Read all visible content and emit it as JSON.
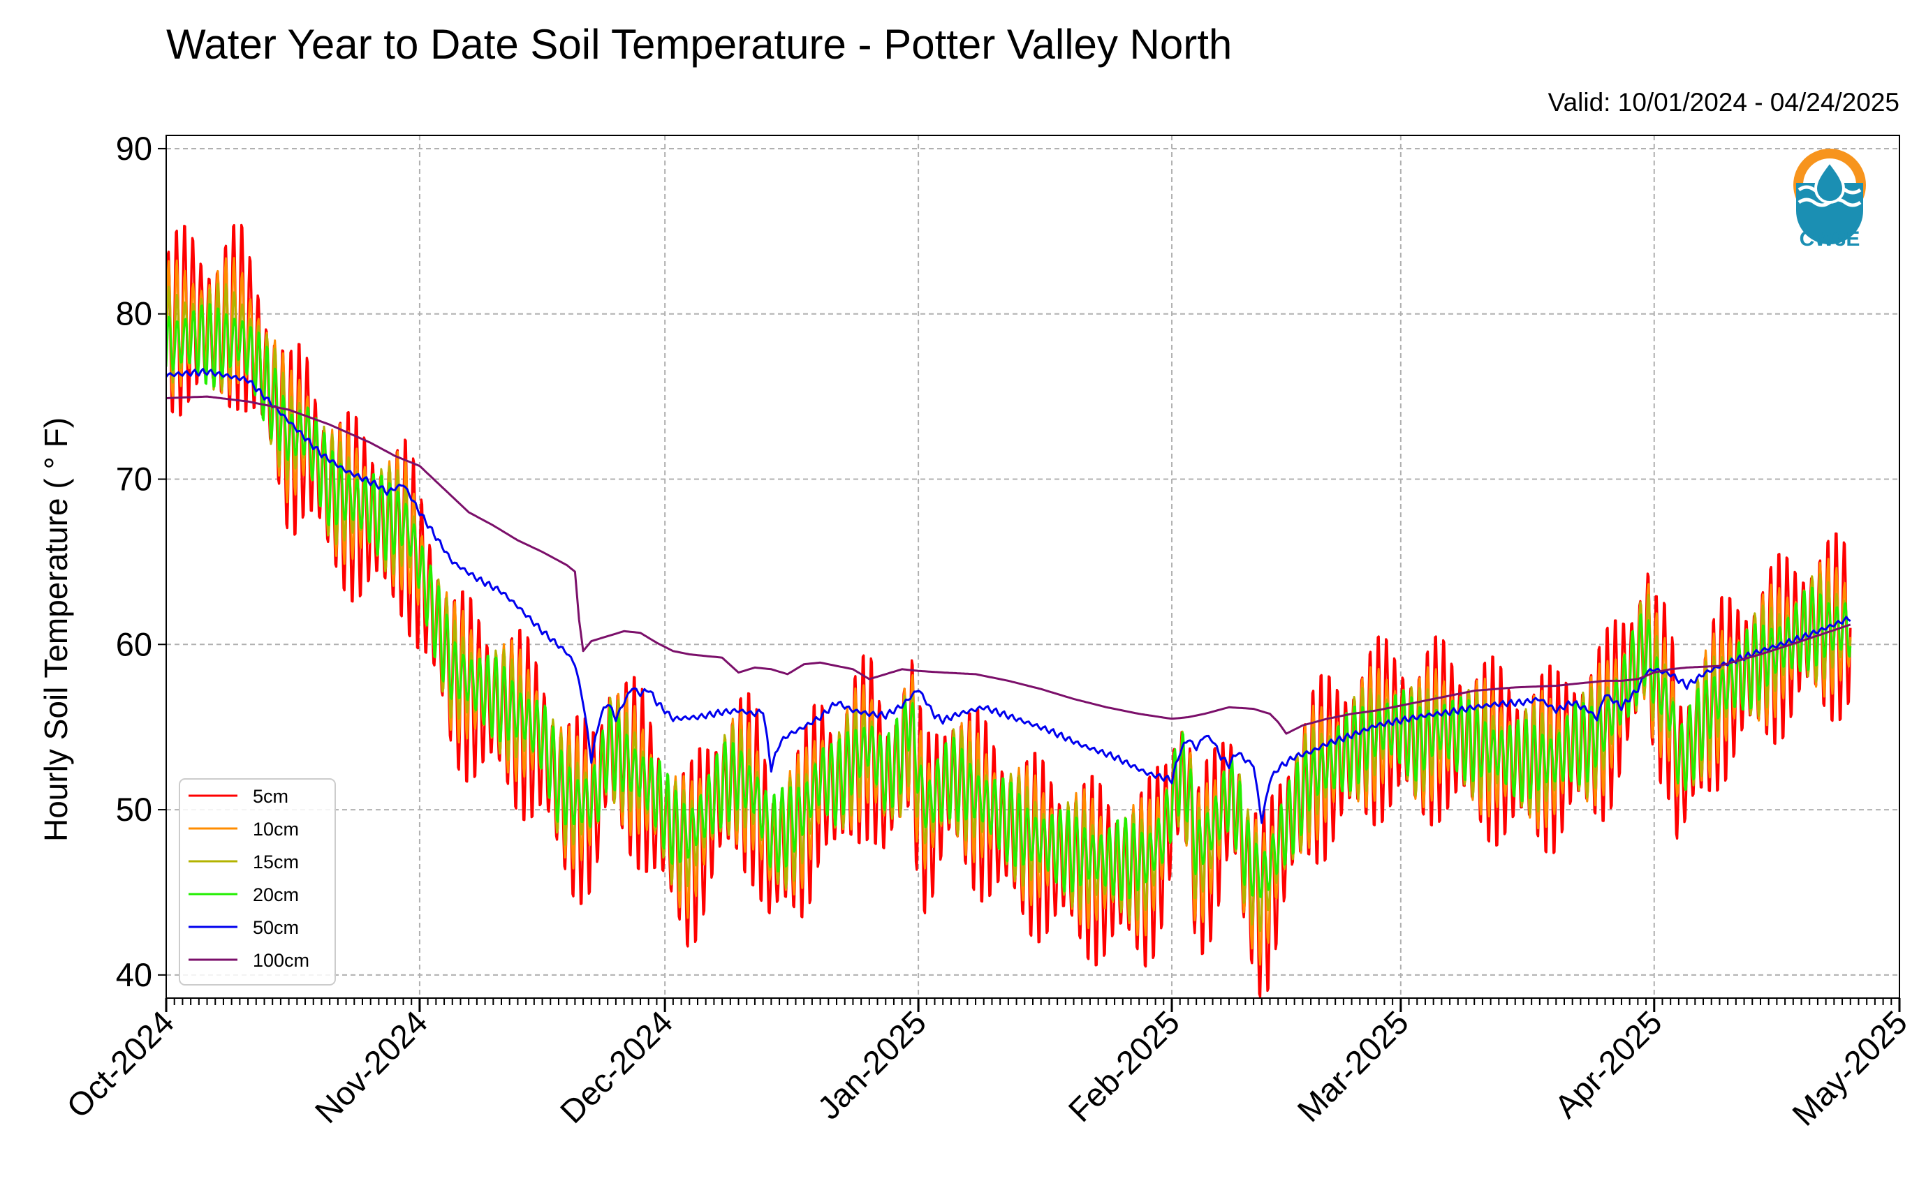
{
  "chart_data": {
    "type": "line",
    "title": "Water Year to Date Soil Temperature - Potter Valley North",
    "subtitle": "Valid: 10/01/2024 - 04/24/2025",
    "ylabel": "Hourly Soil Temperature ( ° F)",
    "xlabel": "",
    "ylim": [
      38.6,
      90.8
    ],
    "yticks": [
      40,
      50,
      60,
      70,
      80,
      90
    ],
    "xlim": [
      0,
      212
    ],
    "x_unit": "days since 2024-10-01",
    "xtick_labels": [
      "Oct-2024",
      "Nov-2024",
      "Dec-2024",
      "Jan-2025",
      "Feb-2025",
      "Mar-2025",
      "Apr-2025",
      "May-2025"
    ],
    "xtick_days": [
      0,
      31,
      61,
      92,
      123,
      151,
      182,
      212
    ],
    "grid": true,
    "legend_position": "lower-left",
    "logo_text": "CW3E",
    "series": [
      {
        "name": "5cm",
        "color": "#ff0000",
        "diurnal_amplitude": 6.0,
        "x": [
          0,
          3,
          6,
          9,
          11,
          15,
          17,
          20,
          24,
          27,
          29,
          30,
          32,
          35,
          38,
          41,
          44,
          46,
          48,
          50,
          52,
          53,
          54,
          56,
          58,
          60,
          62,
          64,
          66,
          68,
          70,
          72,
          74,
          76,
          78,
          80,
          82,
          84,
          86,
          88,
          90,
          91,
          92,
          93,
          94,
          96,
          100,
          105,
          110,
          115,
          120,
          122,
          123,
          124,
          125,
          126,
          128,
          130,
          131,
          132,
          133,
          134,
          135,
          136,
          138,
          140,
          143,
          146,
          149,
          151,
          153,
          156,
          160,
          165,
          170,
          172,
          174,
          176,
          178,
          180,
          181,
          182,
          184,
          185,
          186,
          188,
          190,
          192,
          195,
          198,
          201,
          204,
          206
        ],
        "y": [
          79,
          80,
          79,
          80,
          78,
          72,
          73,
          69,
          68,
          67,
          67,
          66,
          63,
          58,
          57,
          56,
          55,
          54,
          51,
          50,
          50,
          51,
          54,
          53,
          52,
          50,
          48,
          47,
          49,
          51,
          52,
          51,
          47,
          48,
          49,
          52,
          51,
          53,
          54,
          51,
          53,
          55,
          51,
          49,
          50,
          52,
          50,
          48,
          47,
          46,
          46,
          48,
          50,
          52,
          51,
          46,
          48,
          51,
          50,
          46,
          45,
          44,
          45,
          47,
          50,
          52,
          53,
          54,
          55,
          55,
          54,
          55,
          54,
          53,
          53,
          54,
          54,
          55,
          57,
          59,
          61,
          58,
          56,
          52,
          53,
          55,
          57,
          58,
          59,
          60,
          61,
          61,
          61
        ]
      },
      {
        "name": "10cm",
        "color": "#ff8c00",
        "diurnal_amplitude": 4.2,
        "x": [
          0,
          3,
          6,
          9,
          11,
          15,
          17,
          20,
          24,
          27,
          29,
          30,
          32,
          35,
          38,
          41,
          44,
          46,
          48,
          50,
          52,
          53,
          54,
          56,
          58,
          60,
          62,
          64,
          66,
          68,
          70,
          72,
          74,
          76,
          78,
          80,
          82,
          84,
          86,
          88,
          90,
          91,
          92,
          93,
          94,
          96,
          100,
          105,
          110,
          115,
          120,
          122,
          123,
          124,
          125,
          126,
          128,
          130,
          131,
          132,
          133,
          134,
          135,
          136,
          138,
          140,
          143,
          146,
          149,
          151,
          153,
          156,
          160,
          165,
          170,
          172,
          174,
          176,
          178,
          180,
          181,
          182,
          184,
          185,
          186,
          188,
          190,
          192,
          195,
          198,
          201,
          204,
          206
        ],
        "y": [
          79,
          79.5,
          79,
          79.5,
          78,
          72.5,
          73,
          69.5,
          68.5,
          67.5,
          67.5,
          66.5,
          63,
          58.5,
          57.5,
          56.5,
          55.5,
          54.5,
          51.5,
          50.5,
          50.5,
          51.5,
          54,
          53,
          52,
          50.5,
          48.5,
          47.5,
          49.5,
          51.5,
          52,
          51,
          47.5,
          48.5,
          49.5,
          52,
          51.5,
          53,
          54,
          51.5,
          53,
          55,
          51.5,
          49.5,
          50.5,
          52,
          50.5,
          48.5,
          47.5,
          46.5,
          46.5,
          48.5,
          50.5,
          52,
          51,
          46.5,
          48.5,
          51,
          50,
          46.5,
          45.5,
          44.5,
          45.5,
          47.5,
          50,
          52,
          53,
          54,
          55,
          55,
          54,
          55,
          54,
          53,
          53,
          54,
          54,
          55,
          57,
          59,
          60.5,
          58,
          56,
          52.5,
          53.5,
          55.5,
          57,
          58,
          59,
          60,
          61,
          61,
          61
        ]
      },
      {
        "name": "15cm",
        "color": "#b3b300",
        "diurnal_amplitude": 3.3,
        "x": [
          0,
          3,
          6,
          9,
          11,
          15,
          17,
          20,
          24,
          27,
          29,
          30,
          32,
          35,
          38,
          41,
          44,
          46,
          48,
          50,
          52,
          53,
          54,
          56,
          58,
          60,
          62,
          64,
          66,
          68,
          70,
          72,
          74,
          76,
          78,
          80,
          82,
          84,
          86,
          88,
          90,
          91,
          92,
          93,
          94,
          96,
          100,
          105,
          110,
          115,
          120,
          122,
          123,
          124,
          125,
          126,
          128,
          130,
          131,
          132,
          133,
          134,
          135,
          136,
          138,
          140,
          143,
          146,
          149,
          151,
          153,
          156,
          160,
          165,
          170,
          172,
          174,
          176,
          178,
          180,
          181,
          182,
          184,
          185,
          186,
          188,
          190,
          192,
          195,
          198,
          201,
          204,
          206
        ],
        "y": [
          78.5,
          79,
          78.5,
          79,
          77.5,
          72.5,
          73,
          69.5,
          68.5,
          67.5,
          67.5,
          66.5,
          63,
          58.5,
          57.5,
          56.5,
          55.5,
          54.5,
          51.5,
          50.5,
          50.5,
          51.5,
          54,
          53,
          52,
          50.5,
          48.5,
          48,
          49.5,
          51.5,
          52,
          51,
          48,
          48.5,
          49.5,
          52,
          51.5,
          53,
          54,
          51.5,
          53,
          55,
          51.5,
          49.5,
          50.5,
          52,
          50.5,
          48.5,
          47.5,
          46.5,
          46.5,
          48.5,
          50.5,
          52,
          51,
          47,
          48.5,
          51,
          50,
          47,
          46,
          45,
          46,
          47.5,
          50,
          52,
          53,
          54,
          55,
          55,
          54,
          55,
          54,
          53,
          53,
          54,
          54,
          55,
          57,
          59,
          60.5,
          58,
          56,
          53,
          53.5,
          55.5,
          57,
          58,
          59,
          60,
          61,
          61,
          61
        ]
      },
      {
        "name": "20cm",
        "color": "#22ee00",
        "diurnal_amplitude": 2.6,
        "x": [
          0,
          3,
          6,
          9,
          11,
          15,
          17,
          20,
          24,
          27,
          29,
          30,
          32,
          35,
          38,
          41,
          44,
          46,
          48,
          50,
          52,
          53,
          54,
          56,
          58,
          60,
          62,
          64,
          66,
          68,
          70,
          72,
          74,
          76,
          78,
          80,
          82,
          84,
          86,
          88,
          90,
          91,
          92,
          93,
          94,
          96,
          100,
          105,
          110,
          115,
          120,
          122,
          123,
          124,
          125,
          126,
          128,
          130,
          131,
          132,
          133,
          134,
          135,
          136,
          138,
          140,
          143,
          146,
          149,
          151,
          153,
          156,
          160,
          165,
          170,
          172,
          174,
          176,
          178,
          180,
          181,
          182,
          184,
          185,
          186,
          188,
          190,
          192,
          195,
          198,
          201,
          204,
          206
        ],
        "y": [
          78,
          78.5,
          78,
          78.5,
          77,
          72.5,
          73,
          69.5,
          68.5,
          67.5,
          67.5,
          66.5,
          63,
          58.5,
          57.5,
          56.5,
          55.5,
          54.5,
          51.5,
          50.5,
          50.5,
          51.5,
          54,
          53,
          52,
          51,
          49,
          48.5,
          50,
          51.5,
          52,
          51,
          48.5,
          49,
          50,
          52,
          51.5,
          53,
          54,
          52,
          53.5,
          56,
          52,
          50,
          51,
          52,
          50.5,
          48.5,
          47.5,
          47,
          47,
          48.5,
          50.5,
          52.5,
          51.5,
          47.5,
          49,
          51,
          50,
          47.5,
          46.5,
          46,
          46.5,
          48,
          50,
          52,
          53,
          54,
          55,
          55,
          54,
          55,
          54,
          53,
          53,
          54,
          54,
          55,
          57,
          59,
          60,
          58,
          56,
          53,
          53.5,
          55.5,
          57,
          58,
          59,
          60,
          61,
          61,
          61
        ]
      },
      {
        "name": "50cm",
        "color": "#0000ee",
        "diurnal_amplitude": 0.2,
        "x": [
          0,
          5,
          10,
          12,
          16,
          19,
          22,
          26,
          27,
          29,
          31,
          33,
          35,
          38,
          41,
          43,
          46,
          49,
          50,
          51,
          52,
          53,
          54,
          55,
          56,
          57,
          58,
          59,
          60,
          62,
          65,
          68,
          70,
          72,
          73,
          74,
          75,
          76,
          78,
          80,
          82,
          84,
          86,
          88,
          90,
          92,
          94,
          95,
          97,
          100,
          104,
          108,
          112,
          116,
          120,
          123,
          124,
          125,
          126,
          127,
          128,
          129,
          130,
          131,
          132,
          133,
          134,
          135,
          136,
          138,
          140,
          142,
          145,
          148,
          151,
          154,
          157,
          160,
          163,
          166,
          168,
          170,
          172,
          174,
          175,
          176,
          178,
          180,
          181,
          182,
          184,
          186,
          188,
          190,
          195,
          200,
          204,
          206
        ],
        "y": [
          76.3,
          76.5,
          76,
          75,
          73,
          71.5,
          70.5,
          69.6,
          69.2,
          69.7,
          68,
          66.5,
          65,
          64,
          63.2,
          62.3,
          60.8,
          59.5,
          58.8,
          56.5,
          53,
          55.5,
          56.5,
          55.5,
          56.5,
          57.4,
          57,
          57.3,
          56.5,
          55.5,
          55.6,
          55.9,
          56,
          55.8,
          56,
          52.5,
          54,
          54.5,
          55,
          55.6,
          56.5,
          56,
          55.8,
          55.7,
          56.3,
          57.3,
          55.7,
          55.4,
          55.8,
          56.2,
          55.5,
          54.8,
          53.9,
          53.2,
          52.2,
          51.8,
          53.5,
          54.3,
          53.7,
          54.5,
          54.2,
          53.2,
          52.7,
          53.5,
          53,
          52.7,
          49.3,
          51.8,
          52.5,
          53.2,
          53.5,
          54,
          54.5,
          55.1,
          55.4,
          55.7,
          55.9,
          56.2,
          56.4,
          56.5,
          56.7,
          56,
          56.5,
          56,
          55.5,
          57,
          56.2,
          57.3,
          58.3,
          58.5,
          58.2,
          57.5,
          58.2,
          58.7,
          59.6,
          60.4,
          61.2,
          61.6
        ]
      },
      {
        "name": "100cm",
        "color": "#7b0f6a",
        "diurnal_amplitude": 0,
        "x": [
          0,
          5,
          10,
          15,
          20,
          25,
          28,
          31,
          34,
          37,
          40,
          43,
          46,
          49,
          50,
          50.5,
          51,
          52,
          54,
          56,
          58,
          60,
          62,
          64,
          66,
          68,
          70,
          72,
          74,
          76,
          78,
          80,
          82,
          84,
          86,
          88,
          90,
          92,
          95,
          99,
          103,
          107,
          111,
          115,
          119,
          123,
          125,
          127,
          130,
          133,
          135,
          136,
          137,
          139,
          142,
          145,
          148,
          151,
          155,
          160,
          165,
          170,
          172,
          174,
          176,
          178,
          180,
          182,
          184,
          186,
          190,
          195,
          200,
          206
        ],
        "y": [
          74.9,
          75,
          74.7,
          74.2,
          73.3,
          72.2,
          71.4,
          70.8,
          69.4,
          68,
          67.2,
          66.3,
          65.6,
          64.8,
          64.4,
          61.5,
          59.6,
          60.2,
          60.5,
          60.8,
          60.7,
          60.1,
          59.6,
          59.4,
          59.3,
          59.2,
          58.3,
          58.6,
          58.5,
          58.2,
          58.8,
          58.9,
          58.7,
          58.5,
          57.9,
          58.2,
          58.5,
          58.4,
          58.3,
          58.2,
          57.8,
          57.3,
          56.7,
          56.2,
          55.8,
          55.5,
          55.6,
          55.8,
          56.2,
          56.1,
          55.8,
          55.3,
          54.6,
          55.1,
          55.5,
          55.8,
          56.0,
          56.3,
          56.7,
          57.2,
          57.4,
          57.5,
          57.6,
          57.7,
          57.8,
          57.8,
          57.9,
          58.3,
          58.5,
          58.6,
          58.7,
          59.4,
          60.2,
          61.2
        ]
      }
    ]
  }
}
